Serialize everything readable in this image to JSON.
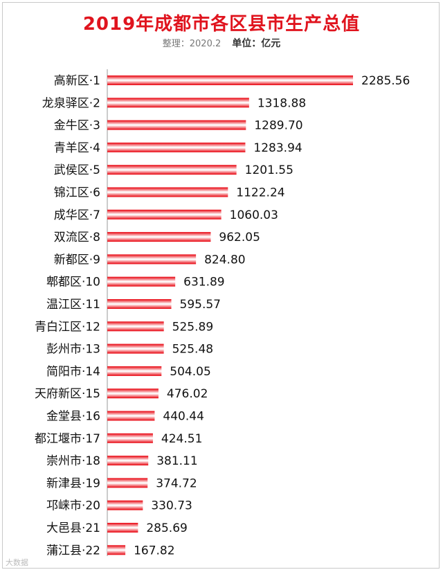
{
  "chart_data": {
    "type": "bar",
    "orientation": "horizontal",
    "title": "2019年成都市各区县市生产总值",
    "subtitle": "整理：2020.2",
    "unit_label": "单位：亿元",
    "categories": [
      "高新区·1",
      "龙泉驿区·2",
      "金牛区·3",
      "青羊区·4",
      "武侯区·5",
      "锦江区·6",
      "成华区·7",
      "双流区·8",
      "新都区·9",
      "郫都区·10",
      "温江区·11",
      "青白江区·12",
      "彭州市·13",
      "简阳市·14",
      "天府新区·15",
      "金堂县·16",
      "都江堰市·17",
      "崇州市·18",
      "新津县·19",
      "邛崃市·20",
      "大邑县·21",
      "蒲江县·22"
    ],
    "values": [
      2285.56,
      1318.88,
      1289.7,
      1283.94,
      1201.55,
      1122.24,
      1060.03,
      962.05,
      824.8,
      631.89,
      595.57,
      525.89,
      525.48,
      504.05,
      476.02,
      440.44,
      424.51,
      381.11,
      374.72,
      330.73,
      285.69,
      167.82
    ],
    "value_labels": [
      "2285.56",
      "1318.88",
      "1289.70",
      "1283.94",
      "1201.55",
      "1122.24",
      "1060.03",
      "962.05",
      "824.80",
      "631.89",
      "595.57",
      "525.89",
      "525.48",
      "504.05",
      "476.02",
      "440.44",
      "424.51",
      "381.11",
      "374.72",
      "330.73",
      "285.69",
      "167.82"
    ],
    "xlim": [
      0,
      2285.56
    ],
    "grid": false,
    "legend": "none",
    "colors": {
      "bar_edge": "#e8000b",
      "bar_center": "#ffffff",
      "title": "#e0141e"
    }
  },
  "watermark": "大数据"
}
